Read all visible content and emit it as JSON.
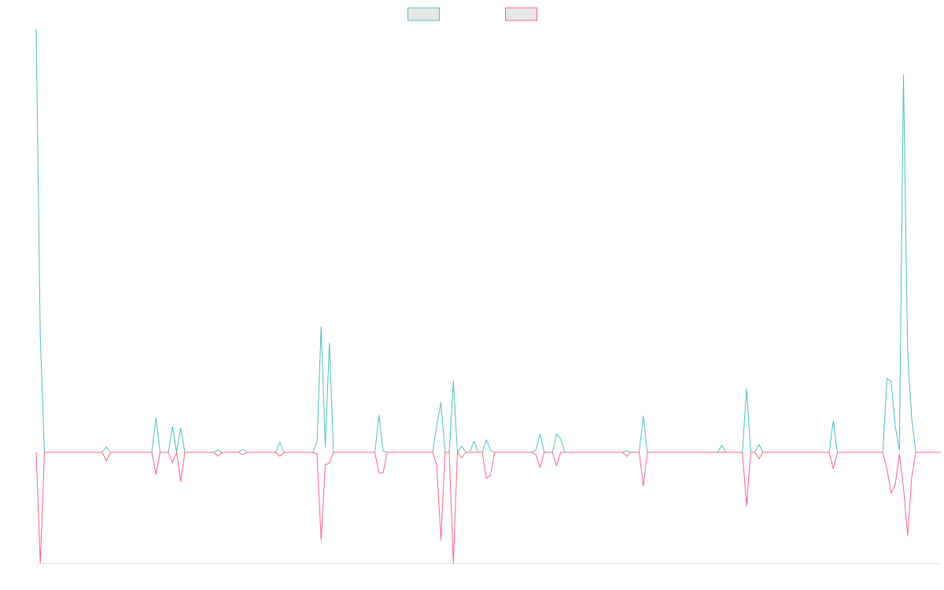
{
  "chart_data": {
    "type": "line",
    "legend": "top",
    "ylim": [
      -141,
      538
    ],
    "series": [
      {
        "color": "#4bc0c0",
        "values": [
          538,
          145,
          0,
          0,
          0,
          0,
          0,
          0,
          0,
          0,
          0,
          0,
          0,
          0,
          0,
          0,
          0,
          7,
          0,
          0,
          0,
          0,
          0,
          0,
          0,
          0,
          0,
          0,
          0,
          44,
          0,
          0,
          0,
          33,
          0,
          31,
          0,
          0,
          0,
          0,
          0,
          0,
          0,
          0,
          3,
          0,
          0,
          0,
          0,
          0,
          4,
          0,
          0,
          0,
          0,
          0,
          0,
          0,
          0,
          13,
          0,
          0,
          0,
          0,
          0,
          0,
          0,
          0,
          13,
          160,
          7,
          139,
          0,
          0,
          0,
          0,
          0,
          0,
          0,
          0,
          0,
          0,
          0,
          47,
          2,
          0,
          0,
          0,
          0,
          0,
          0,
          0,
          0,
          0,
          0,
          0,
          0,
          35,
          63,
          0,
          0,
          91,
          0,
          8,
          0,
          0,
          14,
          0,
          0,
          16,
          3,
          0,
          0,
          0,
          0,
          0,
          0,
          0,
          0,
          0,
          0,
          3,
          23,
          0,
          0,
          0,
          23,
          17,
          0,
          0,
          0,
          0,
          0,
          0,
          0,
          0,
          0,
          0,
          0,
          0,
          0,
          0,
          0,
          2,
          0,
          0,
          0,
          46,
          0,
          0,
          0,
          0,
          0,
          0,
          0,
          0,
          0,
          0,
          0,
          0,
          0,
          0,
          0,
          0,
          0,
          0,
          9,
          0,
          0,
          0,
          0,
          0,
          81,
          0,
          0,
          10,
          0,
          0,
          0,
          0,
          0,
          0,
          0,
          0,
          0,
          0,
          0,
          0,
          0,
          0,
          0,
          0,
          0,
          40,
          0,
          0,
          0,
          0,
          0,
          0,
          0,
          0,
          0,
          0,
          0,
          0,
          94,
          90,
          33,
          3,
          480,
          128,
          42,
          0,
          0,
          0,
          0,
          0,
          0,
          0
        ]
      },
      {
        "color": "#ff6384",
        "values": [
          0,
          -141,
          0,
          0,
          0,
          0,
          0,
          0,
          0,
          0,
          0,
          0,
          0,
          0,
          0,
          0,
          0,
          -11,
          0,
          0,
          0,
          0,
          0,
          0,
          0,
          0,
          0,
          0,
          0,
          -28,
          0,
          0,
          0,
          -13,
          0,
          -37,
          0,
          0,
          0,
          0,
          0,
          0,
          0,
          0,
          -5,
          0,
          0,
          0,
          0,
          0,
          -3,
          0,
          0,
          0,
          0,
          0,
          0,
          0,
          0,
          -5,
          0,
          0,
          0,
          0,
          0,
          0,
          0,
          0,
          -2,
          -112,
          -16,
          -14,
          0,
          0,
          0,
          0,
          0,
          0,
          0,
          0,
          0,
          0,
          0,
          -26,
          -26,
          0,
          0,
          0,
          0,
          0,
          0,
          0,
          0,
          0,
          0,
          0,
          0,
          -16,
          -112,
          0,
          0,
          -141,
          0,
          -7,
          0,
          0,
          0,
          0,
          0,
          -33,
          -29,
          0,
          0,
          0,
          0,
          0,
          0,
          0,
          0,
          0,
          0,
          -3,
          -19,
          0,
          0,
          0,
          -17,
          0,
          0,
          0,
          0,
          0,
          0,
          0,
          0,
          0,
          0,
          0,
          0,
          0,
          0,
          0,
          0,
          -5,
          0,
          0,
          0,
          -43,
          0,
          0,
          0,
          0,
          0,
          0,
          0,
          0,
          0,
          0,
          0,
          0,
          0,
          0,
          0,
          0,
          0,
          0,
          0,
          0,
          0,
          0,
          0,
          0,
          -68,
          0,
          0,
          -8,
          0,
          0,
          0,
          0,
          0,
          0,
          0,
          0,
          0,
          0,
          0,
          0,
          0,
          0,
          0,
          0,
          0,
          -21,
          0,
          0,
          0,
          0,
          0,
          0,
          0,
          0,
          0,
          0,
          0,
          0,
          -21,
          -52,
          -41,
          -2,
          -45,
          -106,
          -31,
          0,
          0,
          0,
          0,
          0,
          0,
          0
        ]
      }
    ]
  }
}
